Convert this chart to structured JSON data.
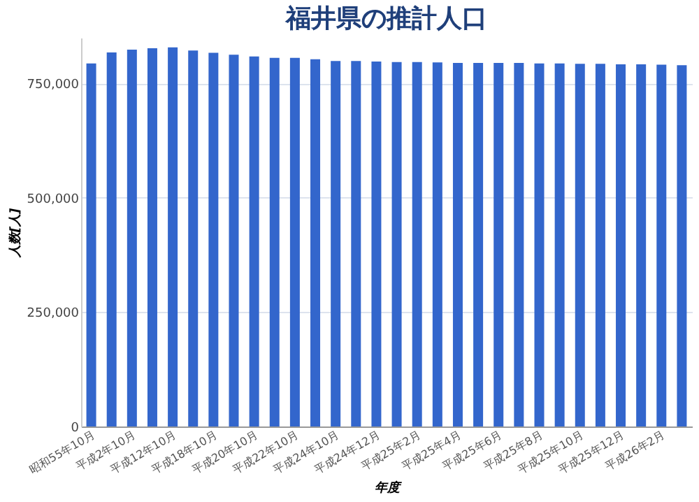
{
  "chart_data": {
    "type": "bar",
    "title": "福井県の推計人口",
    "xlabel": "年度",
    "ylabel": "人数[人]",
    "categories": [
      "昭和55年10月",
      null,
      "平成2年10月",
      null,
      "平成12年10月",
      null,
      "平成18年10月",
      null,
      "平成20年10月",
      null,
      "平成22年10月",
      null,
      "平成24年10月",
      null,
      "平成24年12月",
      null,
      "平成25年2月",
      null,
      "平成25年4月",
      null,
      "平成25年6月",
      null,
      "平成25年8月",
      null,
      "平成25年10月",
      null,
      "平成25年12月",
      null,
      "平成26年2月",
      null
    ],
    "series": [
      {
        "color": "#3366cc",
        "values": [
          794000,
          818000,
          824000,
          827000,
          829000,
          822000,
          817000,
          813000,
          809000,
          806000,
          806000,
          803000,
          799000,
          799000,
          798000,
          797000,
          797000,
          796000,
          795000,
          795000,
          795000,
          795000,
          794000,
          794000,
          793000,
          793000,
          792000,
          792000,
          791000,
          790000
        ]
      }
    ],
    "ylim": [
      0,
      850000
    ],
    "yticks": [
      {
        "value": 0,
        "label": "0"
      },
      {
        "value": 250000,
        "label": "250,000"
      },
      {
        "value": 500000,
        "label": "500,000"
      },
      {
        "value": 750000,
        "label": "750,000"
      }
    ],
    "grid": "y",
    "legend": false
  }
}
